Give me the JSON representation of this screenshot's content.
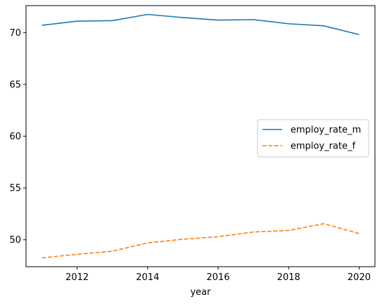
{
  "chart_data": {
    "type": "line",
    "xlabel": "year",
    "ylabel": "",
    "xlim": [
      2010.55,
      2020.45
    ],
    "ylim": [
      47.4,
      72.6
    ],
    "xticks": [
      2012,
      2014,
      2016,
      2018,
      2020
    ],
    "yticks": [
      50,
      55,
      60,
      65,
      70
    ],
    "grid": false,
    "legend_position": "center-right",
    "x": [
      2011,
      2012,
      2013,
      2014,
      2015,
      2016,
      2017,
      2018,
      2019,
      2020
    ],
    "series": [
      {
        "name": "employ_rate_m",
        "color": "#1f77b4",
        "dash": "solid",
        "values": [
          70.7,
          71.1,
          71.15,
          71.75,
          71.45,
          71.2,
          71.25,
          70.85,
          70.65,
          69.8
        ]
      },
      {
        "name": "employ_rate_f",
        "color": "#ff7f0e",
        "dash": "dashed",
        "values": [
          48.25,
          48.6,
          48.9,
          49.7,
          50.05,
          50.3,
          50.75,
          50.9,
          51.55,
          50.6
        ]
      }
    ]
  }
}
